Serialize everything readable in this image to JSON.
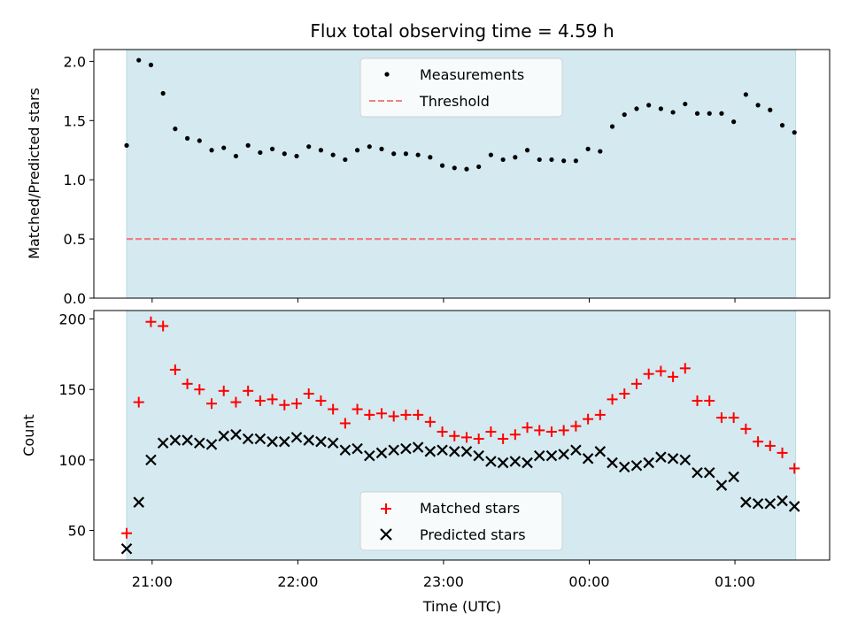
{
  "chart_data": {
    "title": "Flux total observing time = 4.59 h",
    "xlabel": "Time (UTC)",
    "x_tick_labels": [
      "21:00",
      "22:00",
      "23:00",
      "00:00",
      "01:00"
    ],
    "x_tick_minutes": [
      60,
      120,
      180,
      240,
      300
    ],
    "x_range_minutes": [
      36,
      339
    ],
    "x_origin_time": "20:00",
    "observing_window_minutes": [
      49.5,
      325
    ],
    "shade_color": "#d4eaf0",
    "panels": [
      {
        "type": "scatter",
        "ylabel": "Matched/Predicted stars",
        "ylim": [
          0,
          2.1
        ],
        "y_ticks": [
          0.0,
          0.5,
          1.0,
          1.5,
          2.0
        ],
        "y_tick_labels": [
          "0.0",
          "0.5",
          "1.0",
          "1.5",
          "2.0"
        ],
        "legend_position": "upper center",
        "series": [
          {
            "name": "Measurements",
            "marker": "dot",
            "color": "#000000",
            "x": [
              49.5,
              54.5,
              59.5,
              64.5,
              69.5,
              74.5,
              79.5,
              84.5,
              89.5,
              94.5,
              99.5,
              104.5,
              109.5,
              114.5,
              119.5,
              124.5,
              129.5,
              134.5,
              139.5,
              144.5,
              149.5,
              154.5,
              159.5,
              164.5,
              169.5,
              174.5,
              179.5,
              184.5,
              189.5,
              194.5,
              199.5,
              204.5,
              209.5,
              214.5,
              219.5,
              224.5,
              229.5,
              234.5,
              239.5,
              244.5,
              249.5,
              254.5,
              259.5,
              264.5,
              269.5,
              274.5,
              279.5,
              284.5,
              289.5,
              294.5,
              299.5,
              304.5,
              309.5,
              314.5,
              319.5,
              324.5
            ],
            "y": [
              1.29,
              2.01,
              1.97,
              1.73,
              1.43,
              1.35,
              1.33,
              1.25,
              1.27,
              1.2,
              1.29,
              1.23,
              1.26,
              1.22,
              1.2,
              1.28,
              1.25,
              1.21,
              1.17,
              1.25,
              1.28,
              1.26,
              1.22,
              1.22,
              1.21,
              1.19,
              1.12,
              1.1,
              1.09,
              1.11,
              1.21,
              1.17,
              1.19,
              1.25,
              1.17,
              1.17,
              1.16,
              1.16,
              1.26,
              1.24,
              1.45,
              1.55,
              1.6,
              1.63,
              1.6,
              1.57,
              1.64,
              1.56,
              1.56,
              1.56,
              1.49,
              1.72,
              1.63,
              1.59,
              1.46,
              1.4
            ]
          },
          {
            "name": "Threshold",
            "marker": "dashed-line",
            "color": "#f08080",
            "y_value": 0.5
          }
        ]
      },
      {
        "type": "scatter",
        "ylabel": "Count",
        "ylim": [
          29,
          206
        ],
        "y_ticks": [
          50,
          100,
          150,
          200
        ],
        "y_tick_labels": [
          "50",
          "100",
          "150",
          "200"
        ],
        "legend_position": "lower center",
        "series": [
          {
            "name": "Matched stars",
            "marker": "plus",
            "color": "#ff0000",
            "x": [
              49.5,
              54.5,
              59.5,
              64.5,
              69.5,
              74.5,
              79.5,
              84.5,
              89.5,
              94.5,
              99.5,
              104.5,
              109.5,
              114.5,
              119.5,
              124.5,
              129.5,
              134.5,
              139.5,
              144.5,
              149.5,
              154.5,
              159.5,
              164.5,
              169.5,
              174.5,
              179.5,
              184.5,
              189.5,
              194.5,
              199.5,
              204.5,
              209.5,
              214.5,
              219.5,
              224.5,
              229.5,
              234.5,
              239.5,
              244.5,
              249.5,
              254.5,
              259.5,
              264.5,
              269.5,
              274.5,
              279.5,
              284.5,
              289.5,
              294.5,
              299.5,
              304.5,
              309.5,
              314.5,
              319.5,
              324.5
            ],
            "y": [
              48,
              141,
              198,
              195,
              164,
              154,
              150,
              140,
              149,
              141,
              149,
              142,
              143,
              139,
              140,
              147,
              142,
              136,
              126,
              136,
              132,
              133,
              131,
              132,
              132,
              127,
              120,
              117,
              116,
              115,
              120,
              115,
              118,
              123,
              121,
              120,
              121,
              124,
              129,
              132,
              143,
              147,
              154,
              161,
              163,
              159,
              165,
              142,
              142,
              130,
              130,
              122,
              113,
              110,
              105,
              94
            ]
          },
          {
            "name": "Predicted stars",
            "marker": "x",
            "color": "#000000",
            "x": [
              49.5,
              54.5,
              59.5,
              64.5,
              69.5,
              74.5,
              79.5,
              84.5,
              89.5,
              94.5,
              99.5,
              104.5,
              109.5,
              114.5,
              119.5,
              124.5,
              129.5,
              134.5,
              139.5,
              144.5,
              149.5,
              154.5,
              159.5,
              164.5,
              169.5,
              174.5,
              179.5,
              184.5,
              189.5,
              194.5,
              199.5,
              204.5,
              209.5,
              214.5,
              219.5,
              224.5,
              229.5,
              234.5,
              239.5,
              244.5,
              249.5,
              254.5,
              259.5,
              264.5,
              269.5,
              274.5,
              279.5,
              284.5,
              289.5,
              294.5,
              299.5,
              304.5,
              309.5,
              314.5,
              319.5,
              324.5
            ],
            "y": [
              37,
              70,
              100,
              112,
              114,
              114,
              112,
              111,
              117,
              118,
              115,
              115,
              113,
              113,
              116,
              114,
              113,
              112,
              107,
              108,
              103,
              105,
              107,
              108,
              109,
              106,
              107,
              106,
              106,
              103,
              99,
              98,
              99,
              98,
              103,
              103,
              104,
              107,
              101,
              106,
              98,
              95,
              96,
              98,
              102,
              101,
              100,
              91,
              91,
              82,
              88,
              70,
              69,
              69,
              71,
              67
            ]
          }
        ]
      }
    ]
  }
}
